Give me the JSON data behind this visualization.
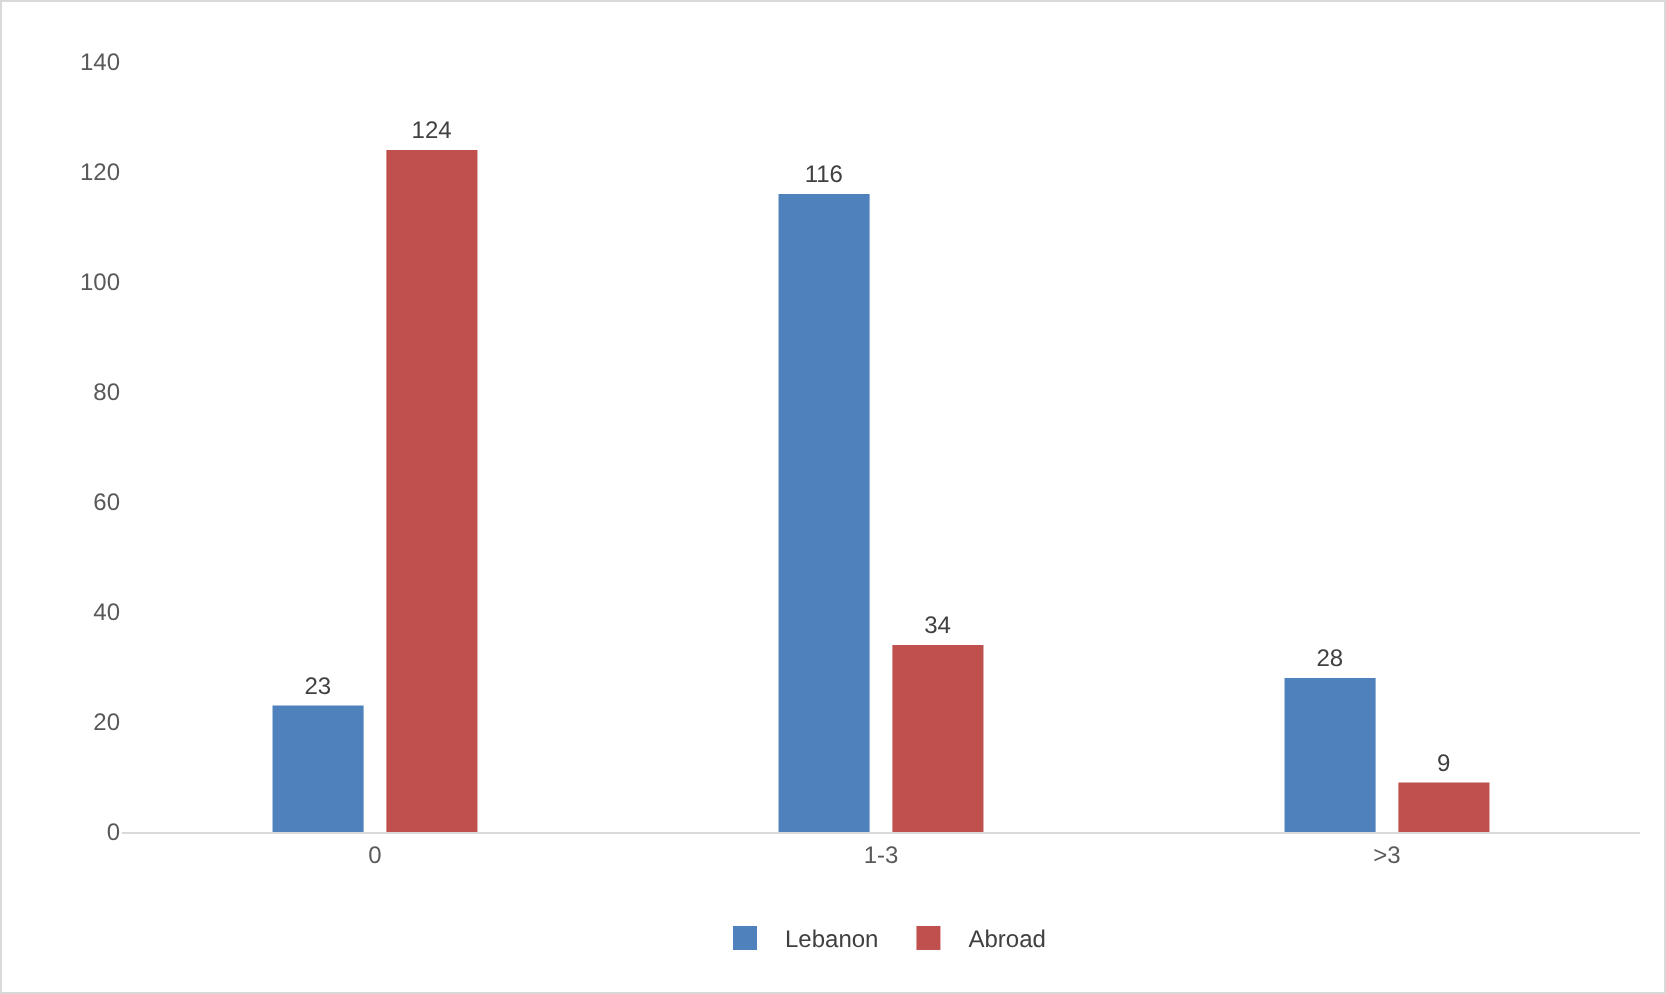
{
  "chart_data": {
    "type": "bar",
    "categories": [
      "0",
      "1-3",
      ">3"
    ],
    "series": [
      {
        "name": "Lebanon",
        "color": "#4f81bd",
        "values": [
          23,
          116,
          28
        ]
      },
      {
        "name": "Abroad",
        "color": "#c0504d",
        "values": [
          124,
          34,
          9
        ]
      }
    ],
    "ylim": [
      0,
      140
    ],
    "yticks": [
      0,
      20,
      40,
      60,
      80,
      100,
      120,
      140
    ],
    "grid": false,
    "legend": "bottom",
    "data_labels": true
  }
}
